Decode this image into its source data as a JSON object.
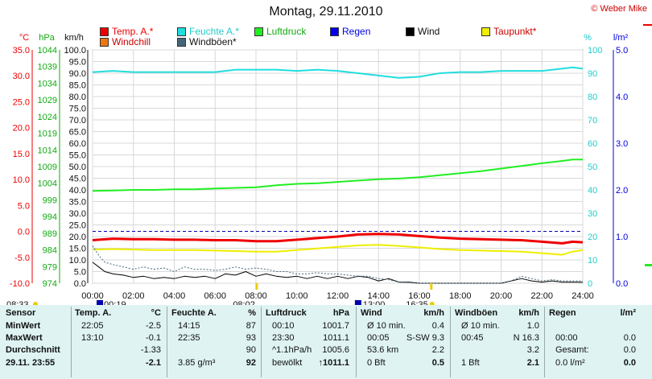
{
  "title": "Montag, 29.11.2010",
  "credit": "© Weber Mike",
  "legend": [
    {
      "label": "Temp. A.*",
      "color": "#ee0000",
      "text_color": "#ee0000"
    },
    {
      "label": "Feuchte A.*",
      "color": "#22dddd",
      "text_color": "#22cccc"
    },
    {
      "label": "Luftdruck",
      "color": "#22ee22",
      "text_color": "#11aa11"
    },
    {
      "label": "Regen",
      "color": "#0000ee",
      "text_color": "#0000dd"
    },
    {
      "label": "Wind",
      "color": "#000000",
      "text_color": "#111111"
    },
    {
      "label": "Taupunkt*",
      "color": "#eeee00",
      "text_color": "#cc0000"
    },
    {
      "label": "Windchill",
      "color": "#ee7711",
      "text_color": "#cc0000"
    },
    {
      "label": "Windböen*",
      "color": "#446677",
      "text_color": "#111111"
    }
  ],
  "axis_units": {
    "temp": "°C",
    "press": "hPa",
    "wind": "km/h",
    "hum": "%",
    "rain": "l/m²"
  },
  "markers": {
    "sunrise": "08:02",
    "sunset": "16:35",
    "moonset": "00:19",
    "moonrise": "13:00",
    "dawn": "08:33"
  },
  "chart_data": {
    "type": "line",
    "x_axis": {
      "ticks": [
        "00:00",
        "02:00",
        "04:00",
        "06:00",
        "08:00",
        "10:00",
        "12:00",
        "14:00",
        "16:00",
        "18:00",
        "20:00",
        "22:00",
        "24:00"
      ],
      "range_hours": [
        0,
        24
      ]
    },
    "axes": {
      "temp": {
        "range": [
          -10,
          35
        ],
        "ticks": [
          "35.0",
          "30.0",
          "25.0",
          "20.0",
          "15.0",
          "10.0",
          "5.0",
          "0.0",
          "-5.0",
          "-10.0"
        ]
      },
      "press": {
        "range": [
          974,
          1044
        ],
        "ticks": [
          "1044",
          "1039",
          "1034",
          "1029",
          "1024",
          "1019",
          "1014",
          "1009",
          "1004",
          "999",
          "994",
          "989",
          "984",
          "979",
          "974"
        ]
      },
      "wind": {
        "range": [
          0,
          100
        ],
        "ticks": [
          "100.0",
          "95.0",
          "90.0",
          "85.0",
          "80.0",
          "75.0",
          "70.0",
          "65.0",
          "60.0",
          "55.0",
          "50.0",
          "45.0",
          "40.0",
          "35.0",
          "30.0",
          "25.0",
          "20.0",
          "15.0",
          "10.0",
          "5.0",
          "0.0"
        ]
      },
      "hum": {
        "range": [
          0,
          100
        ],
        "ticks": [
          "100",
          "90",
          "80",
          "70",
          "60",
          "50",
          "40",
          "30",
          "20",
          "10",
          "0"
        ]
      },
      "rain": {
        "range": [
          0,
          5
        ],
        "ticks": [
          "5.0",
          "4.0",
          "3.0",
          "2.0",
          "1.0",
          "0.0"
        ]
      }
    },
    "series": [
      {
        "name": "Temp. A.*",
        "axis": "temp",
        "color": "#ee0000",
        "width": 3,
        "points": [
          [
            0,
            -1.7
          ],
          [
            1,
            -1.4
          ],
          [
            2,
            -1.5
          ],
          [
            3,
            -1.5
          ],
          [
            4,
            -1.6
          ],
          [
            5,
            -1.6
          ],
          [
            6,
            -1.7
          ],
          [
            7,
            -1.7
          ],
          [
            8,
            -1.9
          ],
          [
            9,
            -1.9
          ],
          [
            10,
            -1.6
          ],
          [
            11,
            -1.3
          ],
          [
            12,
            -1.0
          ],
          [
            13,
            -0.6
          ],
          [
            14,
            -0.5
          ],
          [
            15,
            -0.6
          ],
          [
            16,
            -0.9
          ],
          [
            17,
            -1.2
          ],
          [
            18,
            -1.4
          ],
          [
            19,
            -1.5
          ],
          [
            20,
            -1.6
          ],
          [
            21,
            -1.7
          ],
          [
            22,
            -2.0
          ],
          [
            23,
            -2.3
          ],
          [
            23.5,
            -2.0
          ],
          [
            24,
            -2.1
          ]
        ]
      },
      {
        "name": "Feuchte A.*",
        "axis": "hum",
        "color": "#22dddd",
        "width": 2,
        "points": [
          [
            0,
            90.5
          ],
          [
            1,
            91
          ],
          [
            2,
            90.5
          ],
          [
            3,
            90.5
          ],
          [
            4,
            90.5
          ],
          [
            5,
            90.5
          ],
          [
            6,
            90.5
          ],
          [
            7,
            91.5
          ],
          [
            8,
            91.5
          ],
          [
            9,
            91.5
          ],
          [
            10,
            91
          ],
          [
            11,
            91.5
          ],
          [
            12,
            91
          ],
          [
            13,
            90
          ],
          [
            14,
            89
          ],
          [
            15,
            88
          ],
          [
            16,
            88.5
          ],
          [
            17,
            90
          ],
          [
            18,
            90.5
          ],
          [
            19,
            90.5
          ],
          [
            20,
            91
          ],
          [
            21,
            91
          ],
          [
            22,
            91
          ],
          [
            23,
            92
          ],
          [
            23.5,
            92.5
          ],
          [
            24,
            92
          ]
        ]
      },
      {
        "name": "Luftdruck",
        "axis": "press",
        "color": "#22ee22",
        "width": 2,
        "points": [
          [
            0,
            1001.7
          ],
          [
            1,
            1001.8
          ],
          [
            2,
            1002.0
          ],
          [
            3,
            1002.0
          ],
          [
            4,
            1002.2
          ],
          [
            5,
            1002.2
          ],
          [
            6,
            1002.4
          ],
          [
            7,
            1002.6
          ],
          [
            8,
            1002.8
          ],
          [
            9,
            1003.4
          ],
          [
            10,
            1003.8
          ],
          [
            11,
            1004.0
          ],
          [
            12,
            1004.4
          ],
          [
            13,
            1004.8
          ],
          [
            14,
            1005.2
          ],
          [
            15,
            1005.4
          ],
          [
            16,
            1005.8
          ],
          [
            17,
            1006.4
          ],
          [
            18,
            1007.0
          ],
          [
            19,
            1007.6
          ],
          [
            20,
            1008.4
          ],
          [
            21,
            1009.2
          ],
          [
            22,
            1010.0
          ],
          [
            23,
            1010.7
          ],
          [
            23.5,
            1011.1
          ],
          [
            24,
            1011.1
          ]
        ]
      },
      {
        "name": "Taupunkt*",
        "axis": "temp",
        "color": "#eeee00",
        "width": 2,
        "points": [
          [
            0,
            -3.5
          ],
          [
            1,
            -3.4
          ],
          [
            2,
            -3.5
          ],
          [
            3,
            -3.6
          ],
          [
            4,
            -3.6
          ],
          [
            5,
            -3.6
          ],
          [
            6,
            -3.7
          ],
          [
            7,
            -3.8
          ],
          [
            8,
            -3.9
          ],
          [
            9,
            -3.9
          ],
          [
            10,
            -3.6
          ],
          [
            11,
            -3.3
          ],
          [
            12,
            -3.0
          ],
          [
            13,
            -2.7
          ],
          [
            14,
            -2.6
          ],
          [
            15,
            -2.8
          ],
          [
            16,
            -3.1
          ],
          [
            17,
            -3.4
          ],
          [
            18,
            -3.6
          ],
          [
            19,
            -3.7
          ],
          [
            20,
            -3.8
          ],
          [
            21,
            -3.9
          ],
          [
            22,
            -4.2
          ],
          [
            23,
            -4.5
          ],
          [
            23.5,
            -3.9
          ],
          [
            24,
            -3.6
          ]
        ]
      },
      {
        "name": "Wind",
        "axis": "wind",
        "color": "#000000",
        "width": 1,
        "points": [
          [
            0,
            9
          ],
          [
            0.3,
            7
          ],
          [
            0.6,
            5
          ],
          [
            1,
            4
          ],
          [
            1.5,
            3.5
          ],
          [
            2,
            2.5
          ],
          [
            2.5,
            3
          ],
          [
            3,
            2
          ],
          [
            3.5,
            2.5
          ],
          [
            4,
            2
          ],
          [
            4.5,
            3
          ],
          [
            5,
            2.5
          ],
          [
            5.5,
            3
          ],
          [
            6,
            2
          ],
          [
            6.5,
            4
          ],
          [
            7,
            3.5
          ],
          [
            7.5,
            5
          ],
          [
            8,
            3
          ],
          [
            8.5,
            4
          ],
          [
            9,
            3
          ],
          [
            9.5,
            2.5
          ],
          [
            10,
            3
          ],
          [
            10.5,
            2
          ],
          [
            11,
            3
          ],
          [
            11.5,
            2
          ],
          [
            12,
            3
          ],
          [
            12.5,
            2
          ],
          [
            13,
            3
          ],
          [
            13.5,
            2.5
          ],
          [
            14,
            1
          ],
          [
            14.5,
            2
          ],
          [
            15,
            0.5
          ],
          [
            15.5,
            0.5
          ],
          [
            16,
            0
          ],
          [
            17,
            0
          ],
          [
            18,
            0
          ],
          [
            19,
            0
          ],
          [
            20,
            0
          ],
          [
            20.5,
            1
          ],
          [
            21,
            2
          ],
          [
            21.5,
            1
          ],
          [
            22,
            0.5
          ],
          [
            22.5,
            1
          ],
          [
            23,
            0.5
          ],
          [
            23.5,
            0.5
          ],
          [
            24,
            0.4
          ]
        ]
      },
      {
        "name": "Windböen*",
        "axis": "wind",
        "color": "#446677",
        "width": 1,
        "dash": "2,2",
        "points": [
          [
            0,
            16
          ],
          [
            0.3,
            12
          ],
          [
            0.6,
            9
          ],
          [
            1,
            8
          ],
          [
            1.5,
            7
          ],
          [
            2,
            6
          ],
          [
            2.5,
            7
          ],
          [
            3,
            6
          ],
          [
            3.5,
            6.5
          ],
          [
            4,
            5
          ],
          [
            4.5,
            7
          ],
          [
            5,
            6
          ],
          [
            5.5,
            6
          ],
          [
            6,
            5.5
          ],
          [
            6.5,
            6
          ],
          [
            7,
            7
          ],
          [
            7.5,
            6
          ],
          [
            8,
            6.5
          ],
          [
            8.5,
            6
          ],
          [
            9,
            5
          ],
          [
            9.5,
            5
          ],
          [
            10,
            4
          ],
          [
            10.5,
            4
          ],
          [
            11,
            4.5
          ],
          [
            11.5,
            4
          ],
          [
            12,
            4
          ],
          [
            12.5,
            3.5
          ],
          [
            13,
            3
          ],
          [
            13.5,
            3
          ],
          [
            14,
            2
          ],
          [
            14.5,
            1.5
          ],
          [
            15,
            0.5
          ],
          [
            16,
            0
          ],
          [
            17,
            0
          ],
          [
            18,
            0
          ],
          [
            19,
            0
          ],
          [
            20,
            0
          ],
          [
            20.5,
            1
          ],
          [
            21,
            3
          ],
          [
            21.5,
            2
          ],
          [
            22,
            1
          ],
          [
            22.5,
            1.5
          ],
          [
            23,
            1
          ],
          [
            23.5,
            1
          ],
          [
            24,
            1
          ]
        ]
      }
    ],
    "reference_lines": [
      {
        "axis": "temp",
        "value": 0.0,
        "color": "#0000aa",
        "dash": "4,3"
      }
    ],
    "grid": true,
    "legend_placement": "top"
  },
  "table": {
    "rows": [
      "Sensor",
      "MinWert",
      "MaxWert",
      "Durchschnitt",
      "29.11. 23:55"
    ],
    "groups": [
      {
        "header": "Temp. A.",
        "unit": "°C",
        "cells": [
          [
            "22:05",
            "-2.5"
          ],
          [
            "13:10",
            "-0.1"
          ],
          [
            "",
            "-1.33"
          ],
          [
            "",
            "-2.1"
          ]
        ]
      },
      {
        "header": "Feuchte A.",
        "unit": "%",
        "cells": [
          [
            "14:15",
            "87"
          ],
          [
            "22:35",
            "93"
          ],
          [
            "",
            "90"
          ],
          [
            "3.85 g/m³",
            "92"
          ]
        ]
      },
      {
        "header": "Luftdruck",
        "unit": "hPa",
        "cells": [
          [
            "00:10",
            "1001.7"
          ],
          [
            "23:30",
            "1011.1"
          ],
          [
            "^1.1hPa/h",
            "1005.6"
          ],
          [
            "bewölkt",
            "↑1011.1"
          ]
        ]
      },
      {
        "header": "Wind",
        "unit": "km/h",
        "cells": [
          [
            "Ø 10 min.",
            "0.4"
          ],
          [
            "00:05",
            "S-SW 9.3"
          ],
          [
            "53.6 km",
            "2.2"
          ],
          [
            "0 Bft",
            "0.5"
          ]
        ]
      },
      {
        "header": "Windböen",
        "unit": "km/h",
        "cells": [
          [
            "Ø 10 min.",
            "1.0"
          ],
          [
            "00:45",
            "N 16.3"
          ],
          [
            "",
            "3.2"
          ],
          [
            "1 Bft",
            "2.1"
          ]
        ]
      },
      {
        "header": "Regen",
        "unit": "l/m²",
        "cells": [
          [
            "",
            ""
          ],
          [
            "00:00",
            "0.0"
          ],
          [
            "Gesamt:",
            "0.0"
          ],
          [
            "0.0 l/m²",
            "0.0"
          ]
        ]
      }
    ]
  }
}
